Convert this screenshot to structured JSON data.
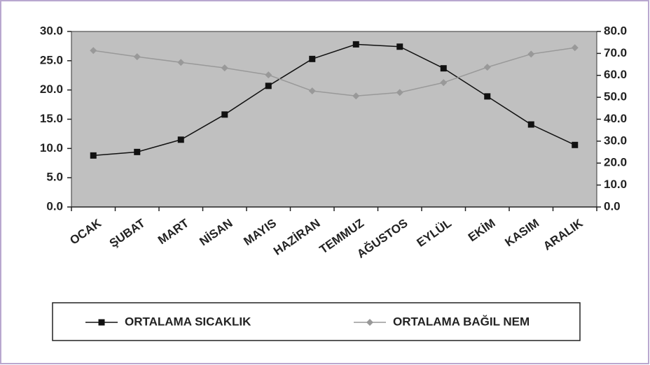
{
  "chart_data": {
    "type": "line",
    "categories": [
      "OCAK",
      "ŞUBAT",
      "MART",
      "NİSAN",
      "MAYIS",
      "HAZİRAN",
      "TEMMUZ",
      "AĞUSTOS",
      "EYLÜL",
      "EKİM",
      "KASIM",
      "ARALIK"
    ],
    "series": [
      {
        "name": "ORTALAMA SICAKLIK",
        "color": "#111111",
        "marker": "square",
        "values": [
          8.8,
          9.4,
          11.5,
          15.8,
          20.7,
          25.3,
          27.8,
          27.4,
          23.7,
          18.9,
          14.1,
          10.6
        ]
      },
      {
        "name": "ORTALAMA BAĞIL NEM",
        "color": "#999999",
        "marker": "diamond",
        "axis": "y2",
        "values": [
          71.3,
          68.5,
          65.9,
          63.4,
          60.2,
          52.9,
          50.6,
          52.2,
          56.7,
          63.7,
          69.7,
          72.6
        ]
      }
    ],
    "ylim": [
      0,
      30
    ],
    "yticks": [
      {
        "value": 0,
        "label": "0.0"
      },
      {
        "value": 5,
        "label": "5.0"
      },
      {
        "value": 10,
        "label": "10.0"
      },
      {
        "value": 15,
        "label": "15.0"
      },
      {
        "value": 20,
        "label": "20.0"
      },
      {
        "value": 25,
        "label": "25.0"
      },
      {
        "value": 30,
        "label": "30.0"
      }
    ],
    "y2lim": [
      0,
      80
    ],
    "y2ticks": [
      {
        "value": 0,
        "label": "0.0"
      },
      {
        "value": 10,
        "label": "10.0"
      },
      {
        "value": 20,
        "label": "20.0"
      },
      {
        "value": 30,
        "label": "30.0"
      },
      {
        "value": 40,
        "label": "40.0"
      },
      {
        "value": 50,
        "label": "50.0"
      },
      {
        "value": 60,
        "label": "60.0"
      },
      {
        "value": 70,
        "label": "70.0"
      },
      {
        "value": 80,
        "label": "80.0"
      }
    ],
    "legend": "bottom",
    "plot_background": "#c0c0c0"
  }
}
